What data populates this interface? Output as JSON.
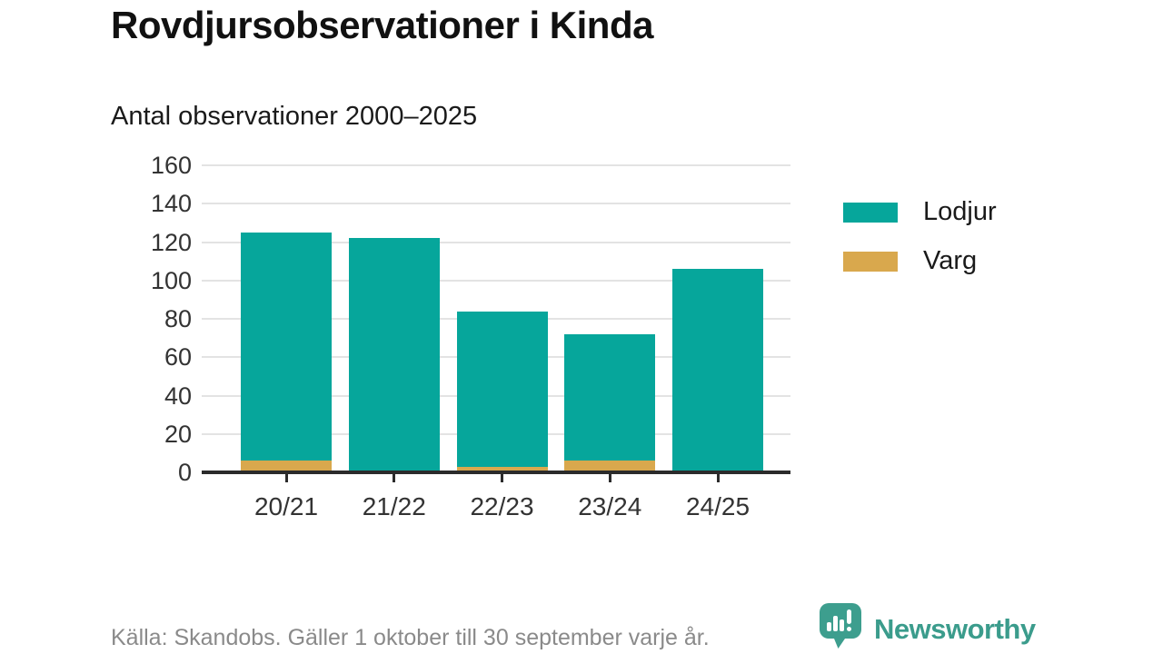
{
  "header": {
    "title": "Rovdjursobservationer i Kinda",
    "subtitle": "Antal observationer 2000–2025"
  },
  "chart_data": {
    "type": "bar",
    "stacked": true,
    "title": "Rovdjursobservationer i Kinda",
    "subtitle": "Antal observationer 2000–2025",
    "categories": [
      "20/21",
      "21/22",
      "22/23",
      "23/24",
      "24/25"
    ],
    "series": [
      {
        "name": "Lodjur",
        "color": "#06a69b",
        "values": [
          119,
          121,
          81,
          66,
          105
        ]
      },
      {
        "name": "Varg",
        "color": "#d9a84d",
        "values": [
          6,
          1,
          3,
          6,
          1
        ]
      }
    ],
    "totals": [
      125,
      122,
      84,
      72,
      106
    ],
    "xlabel": "",
    "ylabel": "",
    "ylim": [
      0,
      160
    ],
    "yticks": [
      0,
      20,
      40,
      60,
      80,
      100,
      120,
      140,
      160
    ],
    "grid": true,
    "legend_position": "right"
  },
  "footer": {
    "source": "Källa: Skandobs. Gäller 1 oktober till 30 september varje år.",
    "brand": "Newsworthy"
  },
  "colors": {
    "lodjur": "#06a69b",
    "varg": "#d9a84d",
    "brand_teal": "#3d9e8e",
    "grid": "#e3e3e3",
    "axis": "#2b2b2b",
    "muted_text": "#8a8a8a"
  }
}
